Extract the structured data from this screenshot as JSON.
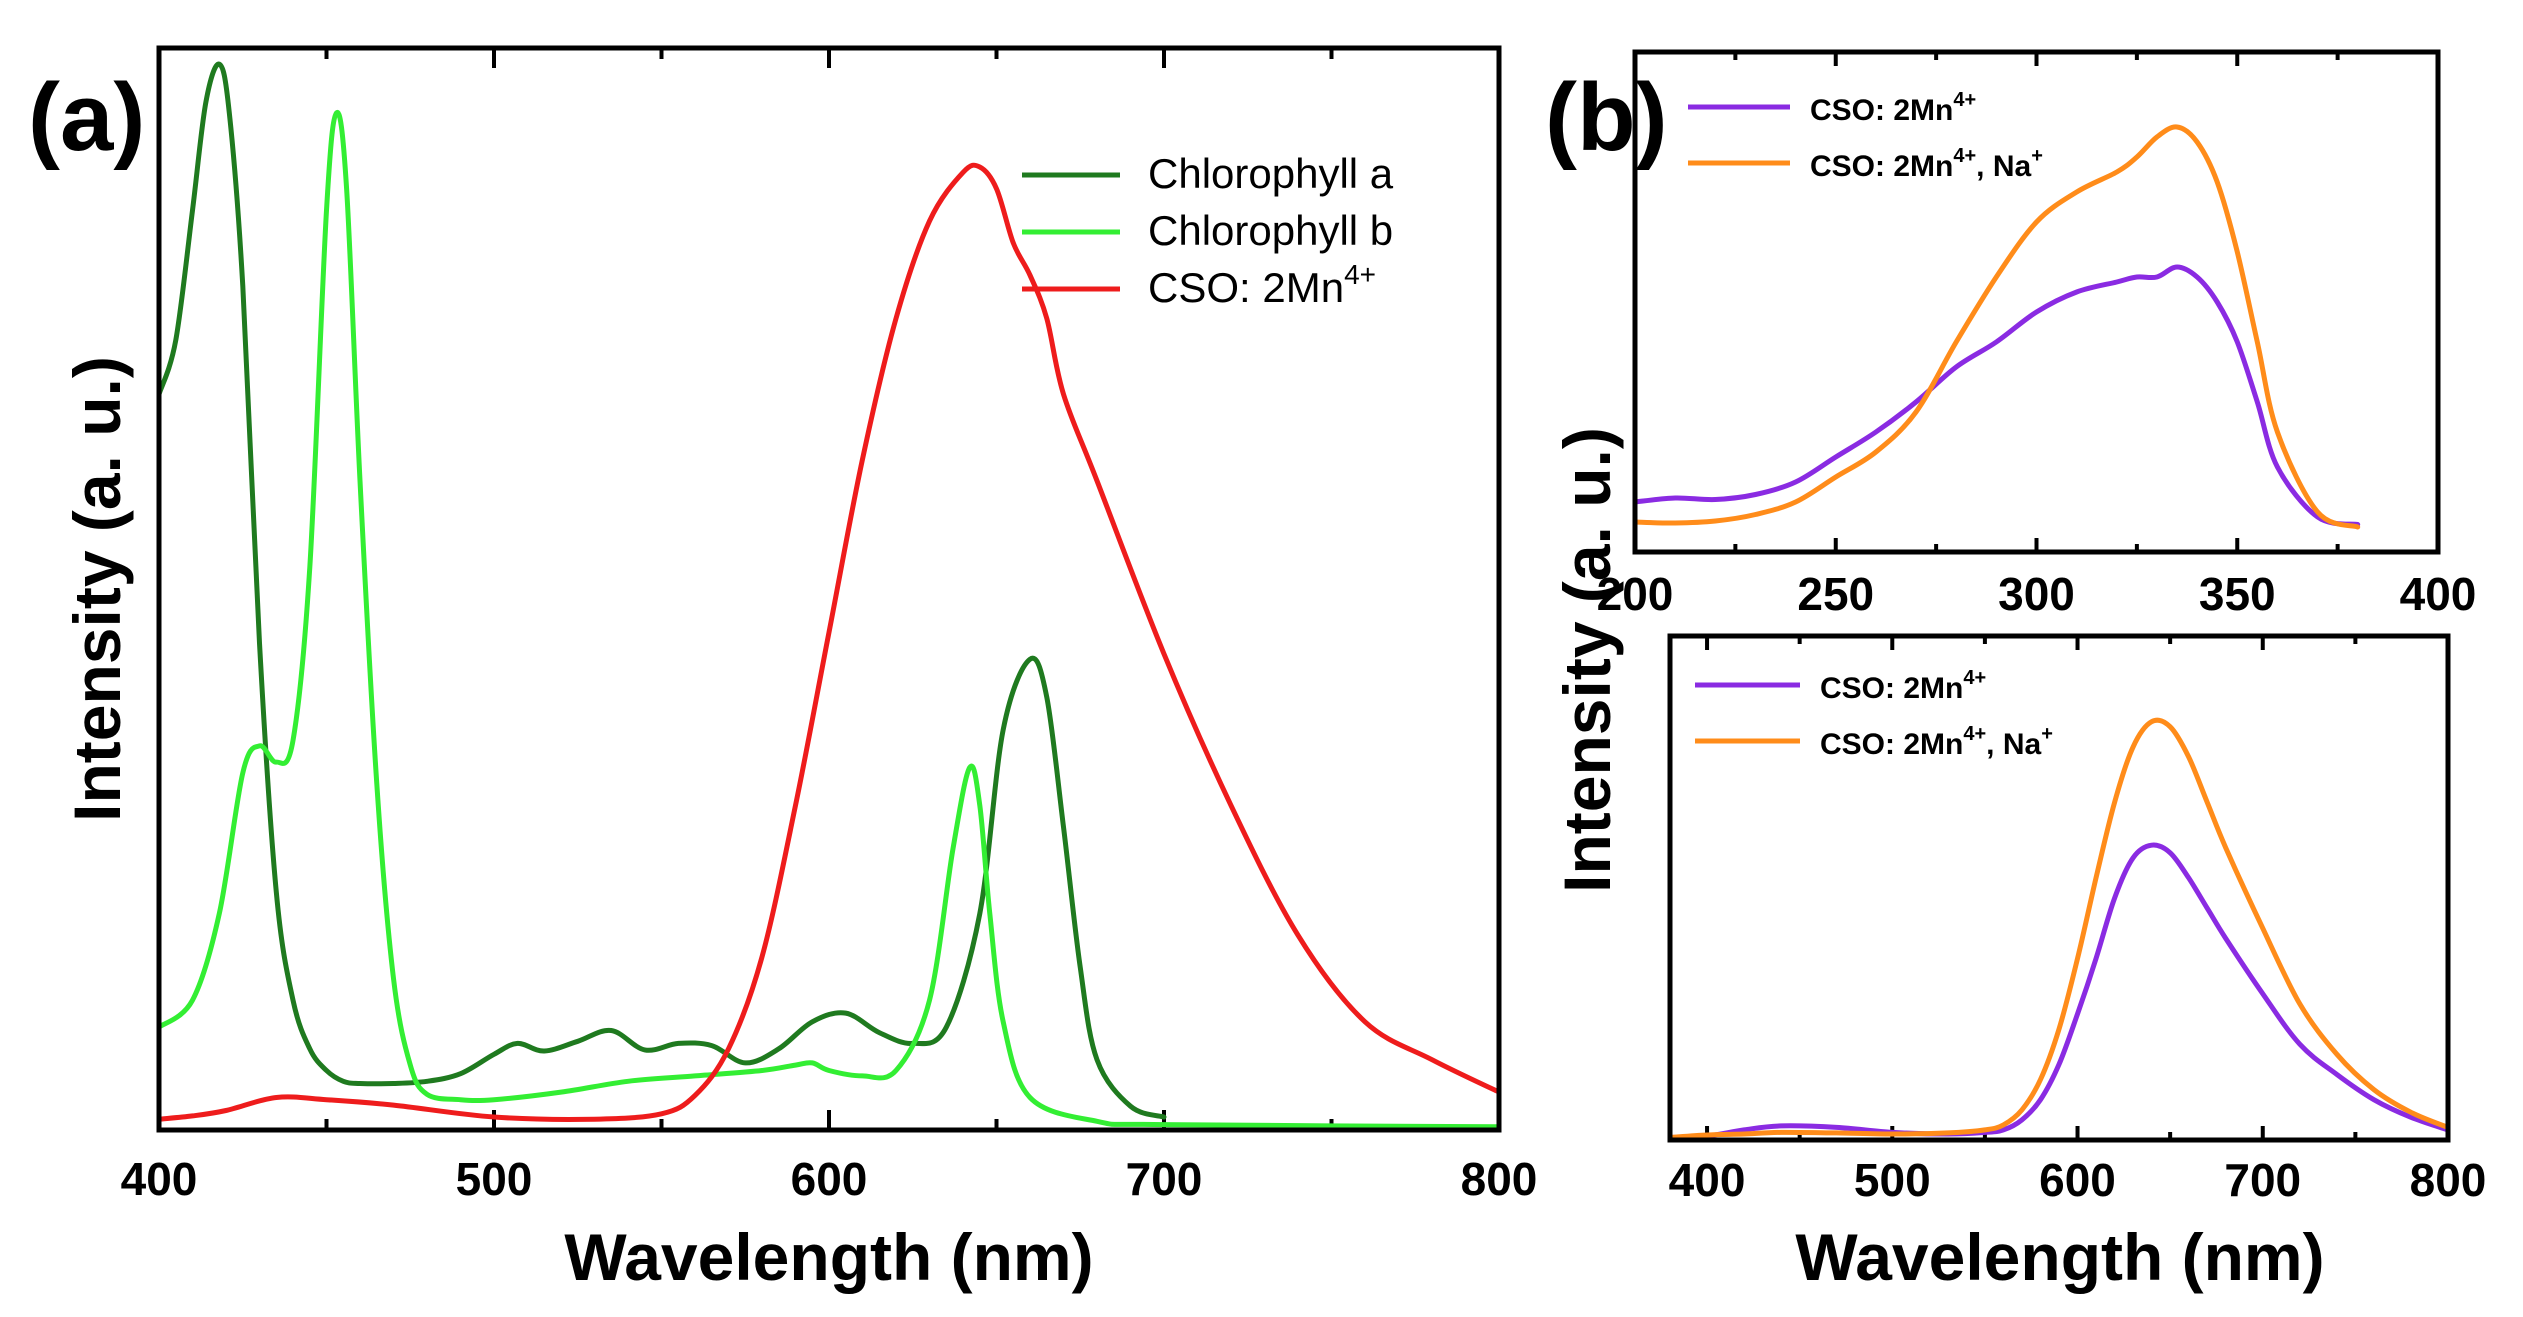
{
  "chart_data": [
    {
      "id": "a",
      "panel_label": "(a)",
      "type": "line",
      "xlabel": "Wavelength (nm)",
      "ylabel": "Intensity (a. u.)",
      "xlim": [
        400,
        800
      ],
      "ylim": [
        0,
        1.0
      ],
      "xticks": [
        400,
        500,
        600,
        700,
        800
      ],
      "show_yticks": false,
      "legend_position": "top-right",
      "series": [
        {
          "name": "Chlorophyll a",
          "base": "Chlorophyll a",
          "sup": "",
          "suffix": "",
          "color": "#1f7a1f",
          "width": 5,
          "x": [
            400,
            405,
            410,
            414,
            418,
            421,
            425,
            430,
            435,
            440,
            445,
            450,
            455,
            460,
            470,
            480,
            490,
            500,
            507,
            515,
            525,
            535,
            545,
            555,
            565,
            575,
            585,
            595,
            605,
            615,
            625,
            635,
            645,
            652,
            660,
            665,
            670,
            675,
            680,
            690,
            700
          ],
          "y": [
            0.68,
            0.73,
            0.85,
            0.95,
            0.985,
            0.94,
            0.78,
            0.45,
            0.22,
            0.12,
            0.075,
            0.055,
            0.045,
            0.043,
            0.043,
            0.045,
            0.052,
            0.07,
            0.08,
            0.073,
            0.082,
            0.092,
            0.074,
            0.08,
            0.078,
            0.062,
            0.075,
            0.1,
            0.108,
            0.09,
            0.08,
            0.095,
            0.2,
            0.37,
            0.435,
            0.4,
            0.28,
            0.15,
            0.065,
            0.022,
            0.012
          ]
        },
        {
          "name": "Chlorophyll b",
          "base": "Chlorophyll b",
          "sup": "",
          "suffix": "",
          "color": "#33ee33",
          "width": 5,
          "x": [
            400,
            410,
            418,
            425,
            430,
            435,
            440,
            445,
            450,
            453,
            456,
            460,
            465,
            470,
            475,
            480,
            490,
            500,
            520,
            540,
            560,
            580,
            590,
            595,
            600,
            610,
            620,
            630,
            637,
            642,
            645,
            648,
            652,
            660,
            680,
            700,
            800
          ],
          "y": [
            0.095,
            0.12,
            0.2,
            0.33,
            0.355,
            0.34,
            0.36,
            0.52,
            0.85,
            0.94,
            0.87,
            0.6,
            0.32,
            0.14,
            0.06,
            0.033,
            0.028,
            0.028,
            0.035,
            0.045,
            0.05,
            0.055,
            0.06,
            0.062,
            0.055,
            0.05,
            0.055,
            0.12,
            0.26,
            0.335,
            0.3,
            0.2,
            0.1,
            0.03,
            0.008,
            0.005,
            0.003
          ]
        },
        {
          "name": "CSO: 2Mn4+",
          "base": "CSO: 2Mn",
          "sup": "4+",
          "suffix": "",
          "color": "#ee1c1c",
          "width": 5,
          "x": [
            400,
            410,
            420,
            435,
            450,
            470,
            500,
            530,
            550,
            560,
            570,
            580,
            590,
            600,
            610,
            620,
            630,
            640,
            645,
            650,
            655,
            660,
            665,
            670,
            680,
            700,
            720,
            740,
            760,
            780,
            800
          ],
          "y": [
            0.01,
            0.013,
            0.018,
            0.03,
            0.028,
            0.023,
            0.012,
            0.01,
            0.015,
            0.032,
            0.075,
            0.16,
            0.3,
            0.46,
            0.62,
            0.75,
            0.84,
            0.885,
            0.89,
            0.87,
            0.82,
            0.79,
            0.75,
            0.68,
            0.6,
            0.44,
            0.3,
            0.18,
            0.1,
            0.065,
            0.035
          ]
        }
      ]
    },
    {
      "id": "b-top",
      "panel_label": "(b)",
      "type": "line",
      "xlabel": "",
      "ylabel": "Intensity (a. u.)",
      "xlim": [
        200,
        400
      ],
      "ylim": [
        0,
        1.0
      ],
      "xticks": [
        200,
        250,
        300,
        350,
        400
      ],
      "show_yticks": false,
      "legend_position": "top-left",
      "series": [
        {
          "name": "CSO: 2Mn4+",
          "base": "CSO: 2Mn",
          "sup": "4+",
          "suffix": "",
          "color": "#8a2be2",
          "width": 5,
          "x": [
            200,
            210,
            220,
            230,
            240,
            250,
            260,
            270,
            280,
            290,
            300,
            310,
            320,
            325,
            330,
            335,
            340,
            345,
            350,
            355,
            360,
            370,
            380
          ],
          "y": [
            0.1,
            0.108,
            0.105,
            0.115,
            0.14,
            0.19,
            0.24,
            0.3,
            0.37,
            0.42,
            0.48,
            0.52,
            0.54,
            0.55,
            0.55,
            0.57,
            0.55,
            0.5,
            0.42,
            0.3,
            0.17,
            0.07,
            0.055
          ]
        },
        {
          "name": "CSO: 2Mn4+, Na+",
          "base": "CSO: 2Mn",
          "sup": "4+",
          "suffix": ", Na",
          "color": "#ff8c1a",
          "width": 5,
          "x": [
            200,
            210,
            220,
            230,
            240,
            250,
            260,
            270,
            280,
            290,
            300,
            310,
            320,
            325,
            330,
            335,
            340,
            345,
            350,
            355,
            360,
            370,
            380
          ],
          "y": [
            0.06,
            0.058,
            0.062,
            0.075,
            0.1,
            0.15,
            0.2,
            0.28,
            0.42,
            0.55,
            0.66,
            0.72,
            0.76,
            0.79,
            0.83,
            0.85,
            0.82,
            0.74,
            0.6,
            0.42,
            0.24,
            0.08,
            0.05
          ]
        }
      ]
    },
    {
      "id": "b-bottom",
      "panel_label": "",
      "type": "line",
      "xlabel": "Wavelength (nm)",
      "ylabel": "",
      "xlim": [
        380,
        800
      ],
      "ylim": [
        0,
        1.0
      ],
      "xticks": [
        400,
        500,
        600,
        700,
        800
      ],
      "show_yticks": false,
      "legend_position": "top-left",
      "series": [
        {
          "name": "CSO: 2Mn4+",
          "base": "CSO: 2Mn",
          "sup": "4+",
          "suffix": "",
          "color": "#8a2be2",
          "width": 5,
          "x": [
            380,
            400,
            420,
            440,
            470,
            500,
            530,
            550,
            560,
            570,
            580,
            590,
            600,
            610,
            620,
            630,
            640,
            650,
            660,
            670,
            680,
            700,
            720,
            740,
            760,
            780,
            800
          ],
          "y": [
            0.005,
            0.008,
            0.02,
            0.028,
            0.025,
            0.015,
            0.012,
            0.015,
            0.02,
            0.04,
            0.08,
            0.15,
            0.25,
            0.36,
            0.48,
            0.56,
            0.585,
            0.57,
            0.52,
            0.46,
            0.4,
            0.29,
            0.19,
            0.13,
            0.08,
            0.045,
            0.02
          ]
        },
        {
          "name": "CSO: 2Mn4+, Na+",
          "base": "CSO: 2Mn",
          "sup": "4+",
          "suffix": ", Na",
          "color": "#ff8c1a",
          "width": 5,
          "x": [
            380,
            400,
            420,
            440,
            470,
            500,
            530,
            550,
            560,
            570,
            580,
            590,
            600,
            610,
            620,
            630,
            640,
            650,
            660,
            670,
            680,
            700,
            720,
            740,
            760,
            780,
            800
          ],
          "y": [
            0.005,
            0.01,
            0.012,
            0.015,
            0.014,
            0.012,
            0.014,
            0.02,
            0.03,
            0.06,
            0.12,
            0.22,
            0.36,
            0.52,
            0.67,
            0.78,
            0.83,
            0.82,
            0.76,
            0.67,
            0.58,
            0.42,
            0.27,
            0.17,
            0.1,
            0.055,
            0.025
          ]
        }
      ]
    }
  ]
}
